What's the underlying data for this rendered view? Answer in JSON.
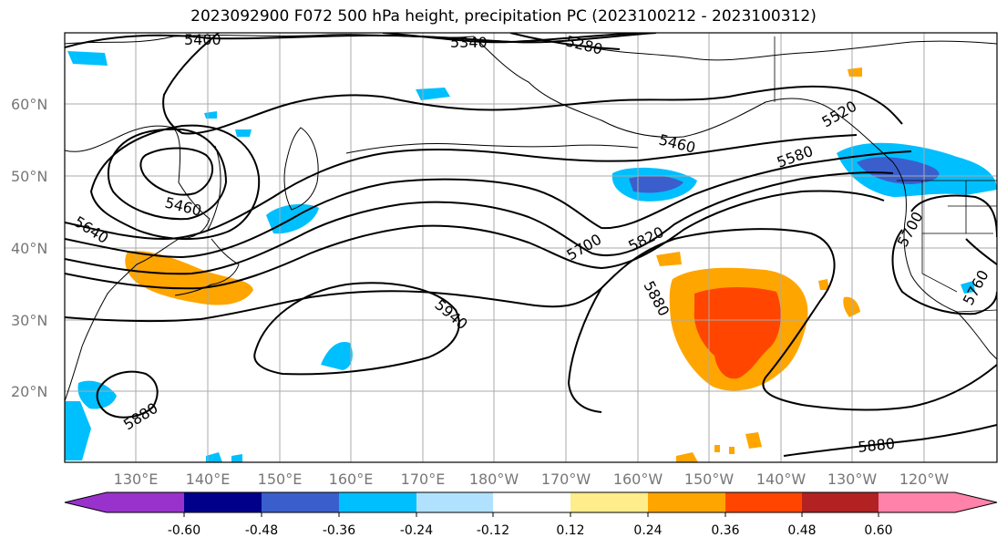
{
  "title": "2023092900 F072 500 hPa height, precipitation PC (2023100212 - 2023100312)",
  "map": {
    "lat_labels": [
      "60°N",
      "50°N",
      "40°N",
      "30°N",
      "20°N"
    ],
    "lon_labels": [
      "130°E",
      "140°E",
      "150°E",
      "160°E",
      "170°E",
      "180°W",
      "170°W",
      "160°W",
      "150°W",
      "140°W",
      "130°W",
      "120°W"
    ],
    "contour_labels": [
      "5400",
      "5340",
      "5280",
      "5520",
      "5460",
      "5580",
      "5460",
      "5640",
      "5700",
      "5820",
      "5700",
      "5880",
      "5940",
      "5760",
      "5880",
      "5880"
    ],
    "colors": {
      "land_outline": "#000000",
      "grid": "#aaaaaa",
      "contour": "#000000"
    }
  },
  "colorbar": {
    "ticks": [
      "-0.60",
      "-0.48",
      "-0.36",
      "-0.24",
      "-0.12",
      "0.12",
      "0.24",
      "0.36",
      "0.48",
      "0.60"
    ],
    "colors": [
      "#9932cc",
      "#00008b",
      "#3a5fcd",
      "#00bfff",
      "#b0e2ff",
      "#ffffff",
      "#ffec8b",
      "#ffa500",
      "#ff4500",
      "#b22222",
      "#ff82ab"
    ]
  }
}
